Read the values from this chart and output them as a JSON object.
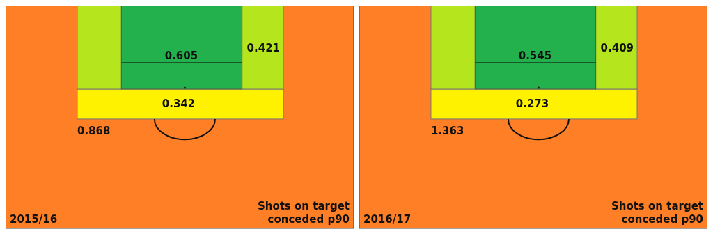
{
  "chart_data": [
    {
      "type": "other",
      "title": "2015/16",
      "annotations": [
        "Shots on target conceded p90"
      ],
      "categories": [
        null,
        null,
        null,
        null
      ],
      "values": [
        0.605,
        0.421,
        0.342,
        0.868
      ],
      "colors": [
        "#22b14c",
        "#b5e61d",
        "#fff200",
        "#ff7f27"
      ],
      "data_labels": true
    },
    {
      "type": "other",
      "title": "2016/17",
      "annotations": [
        "Shots on target conceded p90"
      ],
      "categories": [
        null,
        null,
        null,
        null
      ],
      "values": [
        0.545,
        0.409,
        0.273,
        1.363
      ],
      "colors": [
        "#22b14c",
        "#b5e61d",
        "#fff200",
        "#ff7f27"
      ],
      "data_labels": true
    }
  ]
}
